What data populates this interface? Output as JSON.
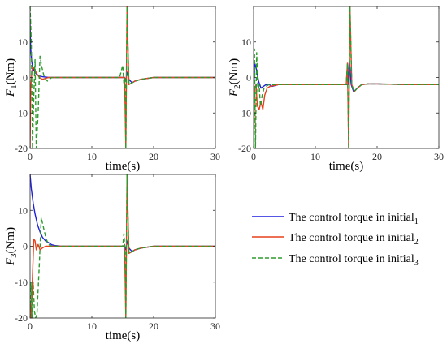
{
  "figure": {
    "legend": {
      "entries": [
        {
          "text": "The control torque in initial",
          "sub": "1",
          "color": "#1f1fdd",
          "dash": "solid"
        },
        {
          "text": "The control torque in initial",
          "sub": "2",
          "color": "#e8401c",
          "dash": "solid"
        },
        {
          "text": "The control torque in initial",
          "sub": "3",
          "color": "#2e9a2e",
          "dash": "dashed"
        }
      ]
    }
  },
  "chart_data": [
    {
      "type": "line",
      "xlabel": "time(s)",
      "ylabel": "F1(Nm)",
      "ylabel_main": "F",
      "ylabel_sub": "1",
      "ylabel_unit": "(Nm)",
      "xlim": [
        0,
        30
      ],
      "ylim": [
        -20,
        20
      ],
      "xticks": [
        0,
        10,
        20,
        30
      ],
      "yticks": [
        -20,
        -10,
        0,
        10
      ],
      "grid": false,
      "series": [
        {
          "color": "#1f1fdd",
          "dash": "solid",
          "x": [
            0,
            0.1,
            0.3,
            0.6,
            1.0,
            1.5,
            2.0,
            3.0,
            5.0,
            15.0,
            15.3,
            15.5,
            15.7,
            16.0,
            16.5,
            17.0,
            18.0,
            20.0,
            25.0,
            30.0
          ],
          "y": [
            15,
            8,
            4,
            2,
            1,
            0.4,
            0.2,
            0,
            0,
            0,
            0,
            -1,
            1.5,
            -0.5,
            -1.5,
            -1,
            -0.5,
            0,
            0,
            0
          ]
        },
        {
          "color": "#e8401c",
          "dash": "solid",
          "x": [
            0,
            0.1,
            0.3,
            0.5,
            0.8,
            1.1,
            1.5,
            2.0,
            3.0,
            5.0,
            15.0,
            15.3,
            15.5,
            15.7,
            16.0,
            16.5,
            17.0,
            18.0,
            20.0,
            25.0,
            30.0
          ],
          "y": [
            -20,
            -3,
            2,
            3,
            2,
            1,
            0,
            -0.5,
            0,
            0,
            0,
            0,
            -20,
            20,
            -2,
            -1.5,
            -1,
            -0.5,
            0,
            0,
            0
          ]
        },
        {
          "color": "#2e9a2e",
          "dash": "dashed",
          "x": [
            0,
            0.2,
            0.4,
            0.6,
            0.8,
            1.0,
            1.3,
            1.6,
            1.9,
            2.3,
            2.8,
            3.5,
            5.0,
            14.5,
            15.0,
            15.2,
            15.4,
            15.5,
            15.7,
            16.0,
            16.5,
            17.0,
            18.0,
            20.0,
            25.0,
            30.0
          ],
          "y": [
            20,
            10,
            -20,
            -5,
            5,
            -20,
            -10,
            6,
            3,
            0,
            -1,
            0,
            0,
            0,
            3.5,
            -2,
            0,
            -20,
            20,
            -2,
            -1.5,
            -1,
            -0.5,
            0,
            0,
            0
          ]
        }
      ]
    },
    {
      "type": "line",
      "xlabel": "time(s)",
      "ylabel": "F2(Nm)",
      "ylabel_main": "F",
      "ylabel_sub": "2",
      "ylabel_unit": "(Nm)",
      "xlim": [
        0,
        30
      ],
      "ylim": [
        -20,
        20
      ],
      "xticks": [
        0,
        10,
        20,
        30
      ],
      "yticks": [
        -20,
        -10,
        0,
        10
      ],
      "grid": false,
      "series": [
        {
          "color": "#1f1fdd",
          "dash": "solid",
          "x": [
            0,
            0.2,
            0.5,
            0.8,
            1.2,
            1.6,
            2.0,
            2.5,
            3.0,
            4.0,
            5.0,
            15.0,
            15.3,
            15.5,
            15.8,
            16.2,
            16.8,
            17.5,
            18.5,
            20.0,
            25.0,
            30.0
          ],
          "y": [
            -5,
            4,
            2,
            -1,
            -3,
            -2.5,
            -2,
            -2,
            -2.5,
            -2,
            -2,
            -2,
            -2,
            5,
            -2,
            -4,
            -3,
            -2,
            -1.8,
            -1.8,
            -2,
            -2
          ]
        },
        {
          "color": "#e8401c",
          "dash": "solid",
          "x": [
            0,
            0.2,
            0.4,
            0.6,
            0.9,
            1.2,
            1.5,
            1.8,
            2.2,
            2.7,
            3.2,
            4.0,
            5.0,
            15.0,
            15.2,
            15.4,
            15.6,
            15.9,
            16.3,
            16.8,
            17.5,
            18.5,
            20.0,
            25.0,
            30.0
          ],
          "y": [
            -20,
            -3,
            -2,
            -8,
            -9,
            -7,
            -9,
            -5,
            -3,
            -2.5,
            -2.3,
            -2,
            -2,
            -2,
            4,
            -20,
            20,
            -2,
            -4,
            -3,
            -2,
            -1.8,
            -1.8,
            -2,
            -2
          ]
        },
        {
          "color": "#2e9a2e",
          "dash": "dashed",
          "x": [
            0,
            0.15,
            0.3,
            0.5,
            0.7,
            0.9,
            1.1,
            1.4,
            1.7,
            2.0,
            2.5,
            3.0,
            4.0,
            5.0,
            15.0,
            15.2,
            15.4,
            15.6,
            15.9,
            16.3,
            16.8,
            17.5,
            18.5,
            20.0,
            25.0,
            30.0
          ],
          "y": [
            -20,
            8,
            -20,
            7,
            -4,
            -2,
            -8,
            -5,
            -3,
            -2.5,
            -2,
            -2,
            -2,
            -2,
            -2,
            4,
            -20,
            20,
            -2,
            -4,
            -3,
            -2,
            -1.8,
            -1.8,
            -2,
            -2
          ]
        }
      ]
    },
    {
      "type": "line",
      "xlabel": "time(s)",
      "ylabel": "F3(Nm)",
      "ylabel_main": "F",
      "ylabel_sub": "3",
      "ylabel_unit": "(Nm)",
      "xlim": [
        0,
        30
      ],
      "ylim": [
        -20,
        20
      ],
      "xticks": [
        0,
        10,
        20,
        30
      ],
      "yticks": [
        -20,
        -10,
        0,
        10
      ],
      "grid": false,
      "series": [
        {
          "color": "#1f1fdd",
          "dash": "solid",
          "x": [
            0,
            0.2,
            0.5,
            0.8,
            1.2,
            1.6,
            2.0,
            2.5,
            3.0,
            3.5,
            4.0,
            5.0,
            15.0,
            15.3,
            15.5,
            15.7,
            16.0,
            16.5,
            17.0,
            18.0,
            20.0,
            25.0,
            30.0
          ],
          "y": [
            20,
            16,
            12,
            9,
            6,
            4,
            2.5,
            1.5,
            1,
            0.4,
            0.2,
            0,
            0,
            0,
            -1,
            1.5,
            -0.5,
            -1.5,
            -1,
            -0.5,
            0,
            0,
            0
          ]
        },
        {
          "color": "#e8401c",
          "dash": "solid",
          "x": [
            0,
            0.2,
            0.4,
            0.6,
            0.8,
            1.0,
            1.3,
            1.6,
            2.0,
            2.5,
            3.0,
            4.0,
            5.0,
            15.0,
            15.3,
            15.5,
            15.7,
            16.0,
            16.5,
            17.0,
            18.0,
            20.0,
            25.0,
            30.0
          ],
          "y": [
            -15,
            -20,
            -8,
            2,
            1.5,
            -1,
            0.5,
            -1,
            -0.5,
            0,
            0,
            0,
            0,
            0,
            0,
            -20,
            20,
            -2,
            -1.5,
            -1,
            -0.5,
            0,
            0,
            0
          ]
        },
        {
          "color": "#2e9a2e",
          "dash": "dashed",
          "x": [
            0,
            0.15,
            0.3,
            0.5,
            0.7,
            0.9,
            1.1,
            1.3,
            1.5,
            1.8,
            2.2,
            2.6,
            3.0,
            3.5,
            4.0,
            5.0,
            15.0,
            15.2,
            15.4,
            15.5,
            15.7,
            16.0,
            16.5,
            17.0,
            18.0,
            20.0,
            25.0,
            30.0
          ],
          "y": [
            -20,
            -10,
            -20,
            -10,
            -18,
            -20,
            -19,
            -12,
            -5,
            8,
            5,
            2,
            0.5,
            0,
            0,
            0,
            0,
            3.5,
            -2,
            -20,
            20,
            -2,
            -1.5,
            -1,
            -0.5,
            0,
            0,
            0
          ]
        }
      ]
    }
  ]
}
